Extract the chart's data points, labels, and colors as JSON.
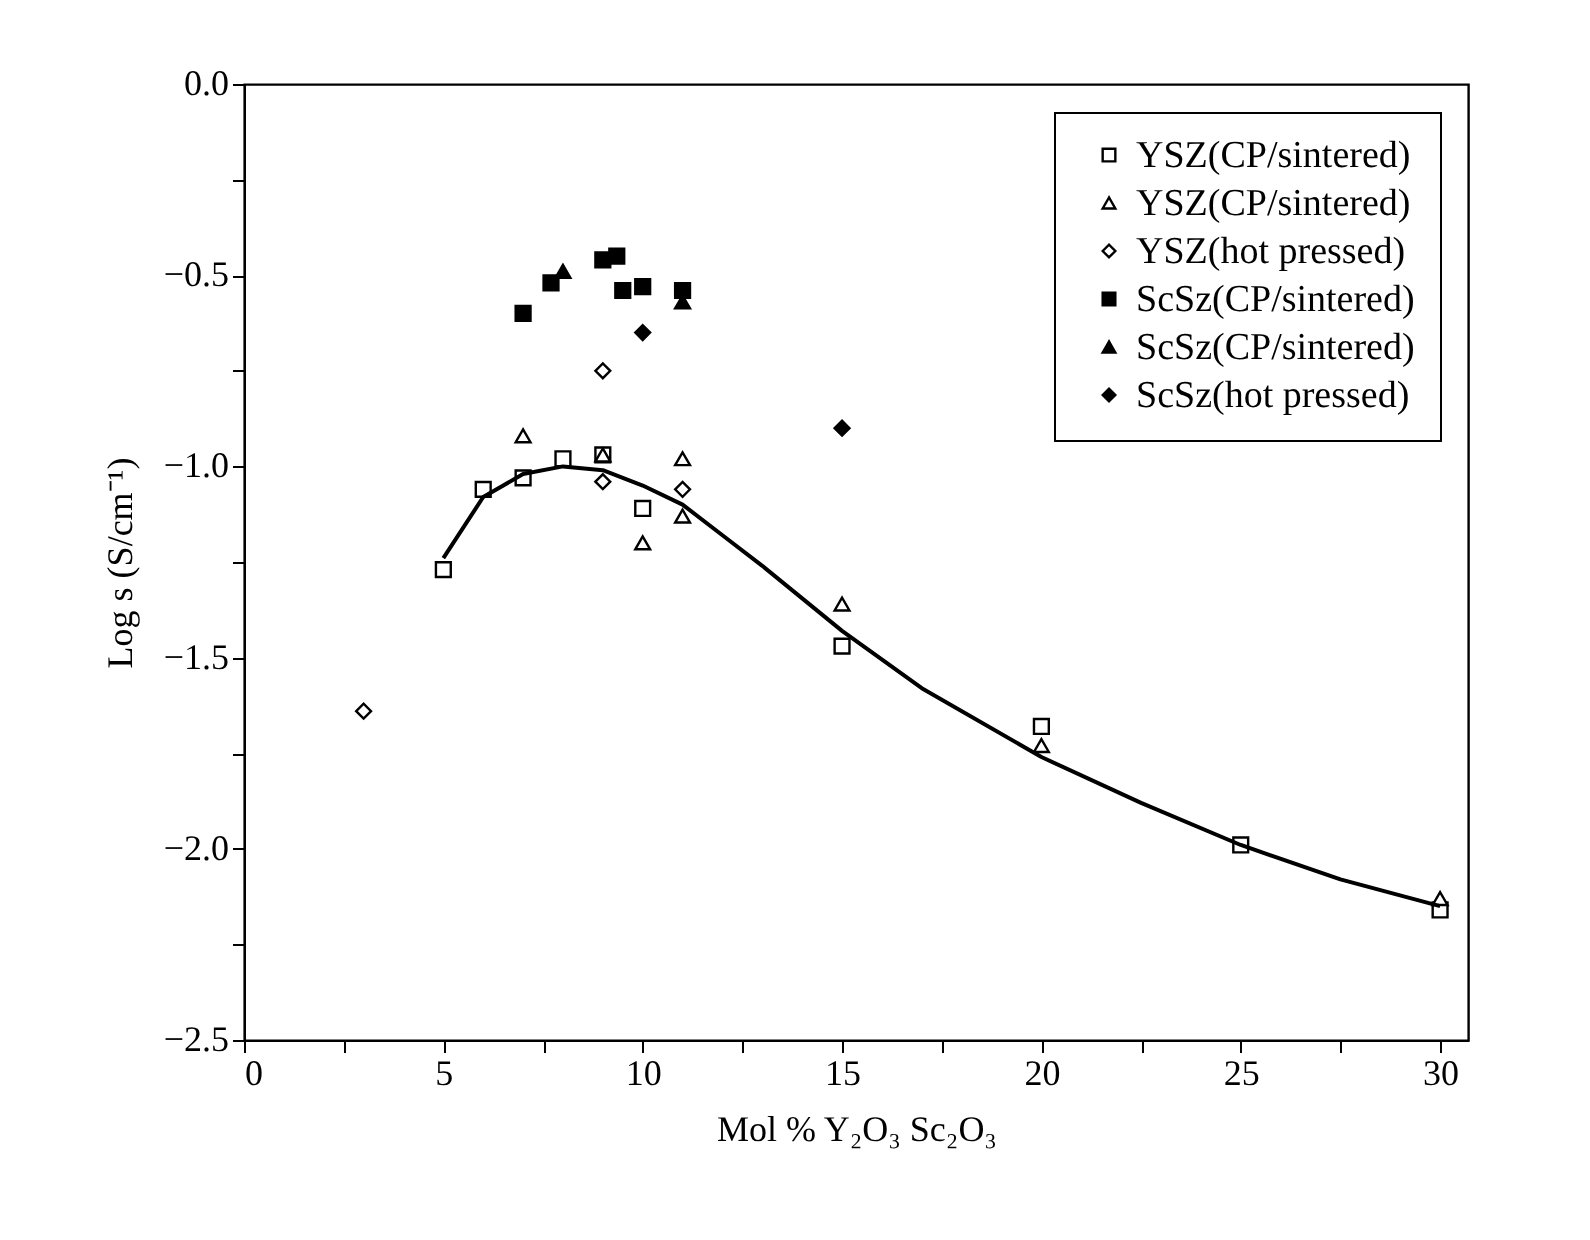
{
  "chart_data": {
    "type": "scatter",
    "xlabel": "Mol % Y₂O₃ Sc₂O₃",
    "ylabel": "Log s (S/cm⁻¹)",
    "xlim": [
      0,
      30.7
    ],
    "ylim": [
      -2.5,
      0
    ],
    "xticks": [
      0,
      {
        "value": 2.5,
        "label": null
      },
      5,
      {
        "value": 7.5,
        "label": null
      },
      10,
      {
        "value": 12.5,
        "label": null
      },
      15,
      {
        "value": 17.5,
        "label": null
      },
      20,
      {
        "value": 22.5,
        "label": null
      },
      25,
      {
        "value": 27.5,
        "label": null
      },
      30
    ],
    "yticks": [
      {
        "value": -2.5,
        "label": "−2.5"
      },
      {
        "value": -2.25,
        "label": null
      },
      {
        "value": -2,
        "label": "−2.0"
      },
      {
        "value": -1.75,
        "label": null
      },
      {
        "value": -1.5,
        "label": "−1.5"
      },
      {
        "value": -1.25,
        "label": null
      },
      {
        "value": -1,
        "label": "−1.0"
      },
      {
        "value": -0.75,
        "label": null
      },
      {
        "value": -0.5,
        "label": "−0.5"
      },
      {
        "value": -0.25,
        "label": null
      },
      {
        "value": 0,
        "label": "0.0"
      }
    ],
    "legend": "top right",
    "series": [
      {
        "name": "YSZ(CP/sintered)",
        "color": "#000000",
        "marker": "square-open",
        "x": [
          5,
          6,
          7,
          8,
          9,
          10,
          15,
          20,
          25,
          30
        ],
        "values": [
          -1.27,
          -1.06,
          -1.03,
          -0.98,
          -0.97,
          -1.11,
          -1.47,
          -1.68,
          -1.99,
          -2.16
        ]
      },
      {
        "name": "YSZ(CP/sintered)",
        "color": "#000000",
        "marker": "triangle-open",
        "x": [
          7,
          9,
          10,
          11,
          11,
          15,
          20,
          30
        ],
        "values": [
          -0.92,
          -0.97,
          -1.2,
          -0.98,
          -1.13,
          -1.36,
          -1.73,
          -2.13
        ]
      },
      {
        "name": "YSZ(hot pressed)",
        "color": "#000000",
        "marker": "diamond-open",
        "x": [
          3,
          9,
          9,
          11
        ],
        "values": [
          -1.64,
          -0.75,
          -1.04,
          -1.06
        ]
      },
      {
        "name": "ScSz(CP/sintered)",
        "color": "#000000",
        "marker": "square",
        "x": [
          7,
          7.7,
          9,
          9.35,
          9.5,
          10,
          11
        ],
        "values": [
          -0.6,
          -0.52,
          -0.46,
          -0.45,
          -0.54,
          -0.53,
          -0.54
        ]
      },
      {
        "name": "ScSz(CP/sintered)",
        "color": "#000000",
        "marker": "triangle",
        "x": [
          8,
          11
        ],
        "values": [
          -0.49,
          -0.57
        ]
      },
      {
        "name": "ScSz(hot pressed)",
        "color": "#000000",
        "marker": "diamond",
        "x": [
          10,
          15
        ],
        "values": [
          -0.65,
          -0.9
        ]
      },
      {
        "type": "line",
        "color": "#000000",
        "marker": "none",
        "line_style": "solid",
        "x": [
          5,
          6,
          7,
          8,
          9,
          10,
          11,
          12,
          13,
          15,
          17,
          20,
          22.5,
          25,
          27.5,
          30
        ],
        "values": [
          -1.24,
          -1.08,
          -1.02,
          -1.0,
          -1.01,
          -1.05,
          -1.1,
          -1.18,
          -1.26,
          -1.43,
          -1.58,
          -1.76,
          -1.88,
          -1.99,
          -2.08,
          -2.15
        ]
      }
    ]
  }
}
